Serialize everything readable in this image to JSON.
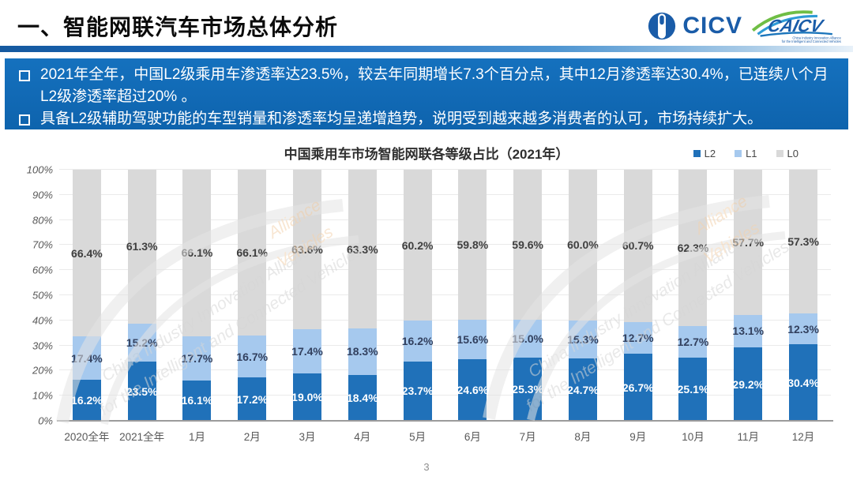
{
  "header": {
    "title": "一、智能网联汽车市场总体分析",
    "logos": {
      "cicv_text": "CICV",
      "caicv_text": "CAICV",
      "caicv_tagline_line1": "China Industry Innovation Alliance",
      "caicv_tagline_line2": "for the Intelligent and Connected Vehicles"
    }
  },
  "banner": {
    "bullets": [
      "2021年全年，中国L2级乘用车渗透率达23.5%，较去年同期增长7.3个百分点，其中12月渗透率达30.4%，已连续八个月L2级渗透率超过20% 。",
      "具备L2级辅助驾驶功能的车型销量和渗透率均呈递增趋势，说明受到越来越多消费者的认可，市场持续扩大。"
    ]
  },
  "chart_data": {
    "type": "bar",
    "stacked": true,
    "title": "中国乘用车市场智能网联各等级占比（2021年）",
    "categories": [
      "2020全年",
      "2021全年",
      "1月",
      "2月",
      "3月",
      "4月",
      "5月",
      "6月",
      "7月",
      "8月",
      "9月",
      "10月",
      "11月",
      "12月"
    ],
    "series": [
      {
        "name": "L2",
        "color": "#2071b9",
        "values": [
          16.2,
          23.5,
          16.1,
          17.2,
          19.0,
          18.4,
          23.7,
          24.6,
          25.3,
          24.7,
          26.7,
          25.1,
          29.2,
          30.4
        ]
      },
      {
        "name": "L1",
        "color": "#a6c9ee",
        "values": [
          17.4,
          15.2,
          17.7,
          16.7,
          17.4,
          18.3,
          16.2,
          15.6,
          15.0,
          15.3,
          12.7,
          12.7,
          13.1,
          12.3
        ]
      },
      {
        "name": "L0",
        "color": "#d9d9d9",
        "values": [
          66.4,
          61.3,
          66.1,
          66.1,
          63.6,
          63.3,
          60.2,
          59.8,
          59.6,
          60.0,
          60.7,
          62.3,
          57.7,
          57.3
        ]
      }
    ],
    "xlabel": "",
    "ylabel": "",
    "ylim": [
      0,
      100
    ],
    "ytick_step": 10,
    "ytick_suffix": "%",
    "value_suffix": "%",
    "grid": true,
    "legend_position": "top-right",
    "dotted_texture_categories": [
      "2020全年",
      "2021全年"
    ]
  },
  "watermark": {
    "line1": "China Industry Innovation Alliance",
    "line2": "for the Intelligent and Connected Vehicles"
  },
  "footer": {
    "page_number": "3"
  }
}
